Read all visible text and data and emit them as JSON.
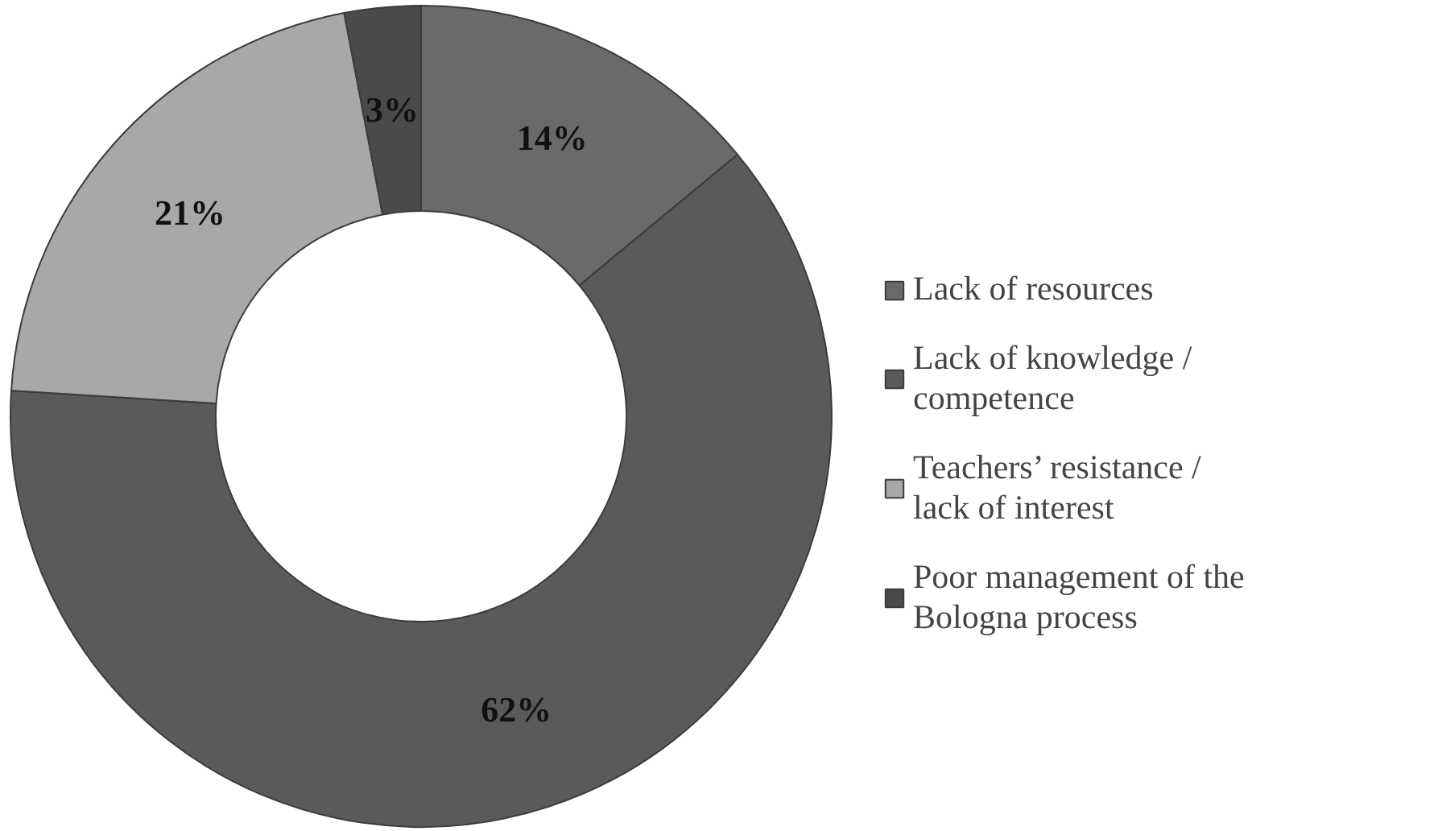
{
  "chart_data": {
    "type": "donut",
    "categories": [
      "Lack of resources",
      "Lack of knowledge / competence",
      "Teachers’ resistance / lack of interest",
      "Poor management of the Bologna process"
    ],
    "values": [
      14,
      62,
      21,
      3
    ],
    "colors": [
      "#6a6a6a",
      "#5a5a5a",
      "#a8a8a8",
      "#4a4a4a"
    ],
    "value_labels": [
      "14%",
      "62%",
      "21%",
      "3%"
    ],
    "legend": "right"
  }
}
